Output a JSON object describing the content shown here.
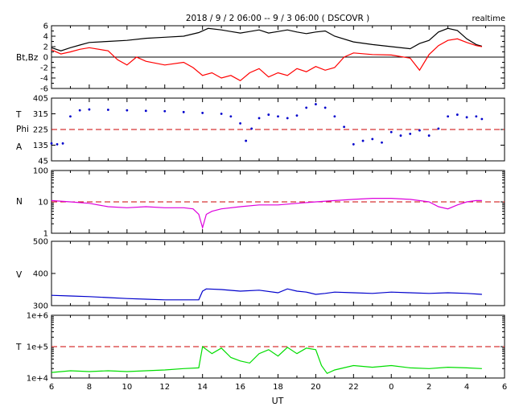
{
  "header": {
    "title": "2018 / 9 / 2   06:00 --  9 / 3   06:00 ( DSCOVR )",
    "badge": "realtime"
  },
  "x_axis": {
    "label": "UT",
    "tick_labels": [
      "6",
      "8",
      "10",
      "12",
      "14",
      "16",
      "18",
      "20",
      "22",
      "0",
      "2",
      "4",
      "6"
    ]
  },
  "chart_data": [
    {
      "type": "line",
      "ylabel": "Bt,Bz",
      "ylim": [
        -6,
        6
      ],
      "yticks": [
        "6",
        "4",
        "2",
        "0",
        "-2",
        "-4",
        "-6"
      ],
      "reference_line": 0,
      "series": [
        {
          "name": "Bt",
          "color": "#000000",
          "x": [
            6.0,
            6.5,
            7.0,
            7.5,
            8.0,
            9.0,
            10.0,
            11.0,
            12.0,
            13.0,
            13.8,
            14.3,
            15.0,
            15.5,
            16.0,
            16.5,
            17.0,
            17.5,
            18.0,
            18.5,
            19.0,
            19.5,
            20.0,
            20.5,
            21.0,
            22.0,
            23.0,
            24.0,
            25.0,
            25.5,
            26.0,
            26.5,
            27.0,
            27.5,
            28.0,
            28.5,
            28.8
          ],
          "values": [
            1.8,
            1.2,
            1.8,
            2.3,
            2.8,
            3.0,
            3.2,
            3.6,
            3.8,
            4.0,
            4.7,
            5.5,
            5.2,
            4.9,
            4.6,
            4.9,
            5.2,
            4.6,
            4.9,
            5.2,
            4.8,
            4.5,
            4.8,
            5.0,
            4.0,
            2.9,
            2.4,
            2.0,
            1.6,
            2.6,
            3.2,
            4.8,
            5.5,
            5.1,
            3.5,
            2.4,
            2.1
          ]
        },
        {
          "name": "Bz",
          "color": "#ff0000",
          "x": [
            6.0,
            6.5,
            7.0,
            7.5,
            8.0,
            9.0,
            9.5,
            10.0,
            10.5,
            11.0,
            12.0,
            13.0,
            13.5,
            14.0,
            14.5,
            15.0,
            15.5,
            16.0,
            16.5,
            17.0,
            17.5,
            18.0,
            18.5,
            19.0,
            19.5,
            20.0,
            20.5,
            21.0,
            21.5,
            22.0,
            23.0,
            24.0,
            25.0,
            25.5,
            26.0,
            26.5,
            27.0,
            27.5,
            28.0,
            28.5,
            28.8
          ],
          "values": [
            1.4,
            0.6,
            1.0,
            1.5,
            1.8,
            1.2,
            -0.5,
            -1.5,
            0.0,
            -0.8,
            -1.5,
            -1.0,
            -2.0,
            -3.5,
            -3.0,
            -4.0,
            -3.5,
            -4.5,
            -3.0,
            -2.2,
            -3.8,
            -3.0,
            -3.5,
            -2.2,
            -2.8,
            -1.8,
            -2.5,
            -2.0,
            0.0,
            0.8,
            0.5,
            0.4,
            -0.2,
            -2.5,
            0.5,
            2.2,
            3.2,
            3.5,
            2.8,
            2.2,
            2.0
          ]
        }
      ]
    },
    {
      "type": "scatter",
      "ylabel": "T Phi A",
      "ylim": [
        45,
        405
      ],
      "yticks": [
        "405",
        "315",
        "225",
        "135",
        "45"
      ],
      "reference_line": 225,
      "series": [
        {
          "name": "Phi",
          "color": "#0000cc",
          "x": [
            6.0,
            6.3,
            6.6,
            7.0,
            7.5,
            8.0,
            9.0,
            10.0,
            11.0,
            12.0,
            13.0,
            14.0,
            15.0,
            15.5,
            16.0,
            16.3,
            16.6,
            17.0,
            17.5,
            18.0,
            18.5,
            19.0,
            19.5,
            20.0,
            20.5,
            21.0,
            21.5,
            22.0,
            22.5,
            23.0,
            23.5,
            24.0,
            24.5,
            25.0,
            25.5,
            26.0,
            26.5,
            27.0,
            27.5,
            28.0,
            28.5,
            28.8
          ],
          "values": [
            145,
            140,
            145,
            300,
            335,
            340,
            338,
            335,
            332,
            330,
            325,
            320,
            315,
            300,
            260,
            160,
            230,
            290,
            310,
            300,
            290,
            305,
            350,
            370,
            350,
            300,
            240,
            140,
            160,
            170,
            150,
            210,
            190,
            200,
            220,
            190,
            230,
            300,
            310,
            295,
            300,
            285
          ]
        }
      ]
    },
    {
      "type": "line",
      "ylabel": "N",
      "ylim": [
        1,
        100
      ],
      "log_scale": true,
      "yticks": [
        "100",
        "10",
        "1"
      ],
      "reference_line": 10,
      "series": [
        {
          "name": "N",
          "color": "#dd00dd",
          "x": [
            6.0,
            7.0,
            8.0,
            9.0,
            10.0,
            11.0,
            12.0,
            13.0,
            13.5,
            13.8,
            14.0,
            14.2,
            14.5,
            15.0,
            16.0,
            17.0,
            18.0,
            19.0,
            20.0,
            21.0,
            22.0,
            23.0,
            24.0,
            25.0,
            26.0,
            26.5,
            27.0,
            27.5,
            28.0,
            28.5,
            28.8
          ],
          "values": [
            11,
            10,
            9,
            7,
            6.5,
            7,
            6.5,
            6.5,
            6.0,
            4,
            1.5,
            4,
            5,
            6,
            7,
            8,
            8,
            9,
            10,
            11,
            12,
            13,
            13,
            12,
            10,
            7,
            6,
            8,
            10,
            11,
            11
          ]
        }
      ]
    },
    {
      "type": "line",
      "ylabel": "V",
      "ylim": [
        300,
        500
      ],
      "yticks": [
        "500",
        "400",
        "300"
      ],
      "series": [
        {
          "name": "V",
          "color": "#0000cc",
          "x": [
            6.0,
            7.0,
            8.0,
            9.0,
            10.0,
            11.0,
            12.0,
            13.0,
            13.8,
            14.0,
            14.2,
            15.0,
            16.0,
            17.0,
            18.0,
            18.5,
            19.0,
            19.5,
            20.0,
            20.5,
            21.0,
            22.0,
            23.0,
            24.0,
            25.0,
            26.0,
            27.0,
            28.0,
            28.8
          ],
          "values": [
            332,
            330,
            328,
            325,
            322,
            320,
            318,
            318,
            318,
            345,
            352,
            350,
            345,
            348,
            340,
            352,
            345,
            342,
            335,
            338,
            342,
            340,
            338,
            342,
            340,
            338,
            340,
            338,
            335
          ]
        }
      ]
    },
    {
      "type": "line",
      "ylabel": "T",
      "ylim": [
        10000,
        1000000
      ],
      "log_scale": true,
      "yticks": [
        "1e+6",
        "1e+5",
        "1e+4"
      ],
      "reference_line": 100000,
      "series": [
        {
          "name": "T",
          "color": "#00dd00",
          "x": [
            6.0,
            7.0,
            8.0,
            9.0,
            10.0,
            11.0,
            12.0,
            13.0,
            13.8,
            14.0,
            14.5,
            15.0,
            15.5,
            16.0,
            16.5,
            17.0,
            17.5,
            18.0,
            18.5,
            19.0,
            19.5,
            20.0,
            20.3,
            20.6,
            21.0,
            22.0,
            23.0,
            24.0,
            25.0,
            26.0,
            27.0,
            28.0,
            28.8
          ],
          "values": [
            15000,
            17000,
            16000,
            17000,
            16000,
            17000,
            18000,
            20000,
            21000,
            100000,
            60000,
            90000,
            45000,
            35000,
            30000,
            60000,
            80000,
            50000,
            95000,
            60000,
            90000,
            80000,
            25000,
            14000,
            18000,
            25000,
            22000,
            25000,
            21000,
            20000,
            22000,
            21000,
            20000
          ]
        }
      ]
    }
  ]
}
